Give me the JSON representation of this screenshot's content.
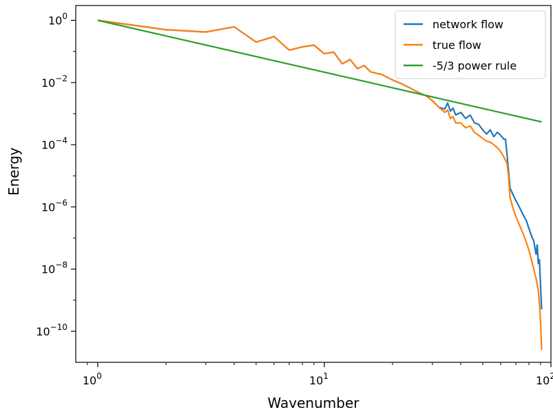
{
  "chart_data": {
    "type": "line",
    "xlabel": "Wavenumber",
    "ylabel": "Energy",
    "xscale": "log",
    "yscale": "log",
    "xlim": [
      0.8,
      100
    ],
    "ylim": [
      1e-11,
      3
    ],
    "grid": false,
    "legend_position": "top-right",
    "x_ticks": [
      {
        "value": 1,
        "base": "10",
        "exp": "0"
      },
      {
        "value": 10,
        "base": "10",
        "exp": "1"
      },
      {
        "value": 100,
        "base": "10",
        "exp": "2"
      }
    ],
    "y_ticks": [
      {
        "value": 1,
        "base": "10",
        "exp": "0"
      },
      {
        "value": 0.01,
        "base": "10",
        "exp": "−2"
      },
      {
        "value": 0.0001,
        "base": "10",
        "exp": "−4"
      },
      {
        "value": 1e-06,
        "base": "10",
        "exp": "−6"
      },
      {
        "value": 1e-08,
        "base": "10",
        "exp": "−8"
      },
      {
        "value": 1e-10,
        "base": "10",
        "exp": "−10"
      }
    ],
    "series": [
      {
        "name": "network flow",
        "color": "#1f77b4",
        "points": [
          [
            1,
            1.0
          ],
          [
            2,
            0.5
          ],
          [
            3,
            0.42
          ],
          [
            4,
            0.62
          ],
          [
            5,
            0.2
          ],
          [
            6,
            0.3
          ],
          [
            7,
            0.11
          ],
          [
            8,
            0.14
          ],
          [
            9,
            0.16
          ],
          [
            10,
            0.085
          ],
          [
            11,
            0.095
          ],
          [
            12,
            0.04
          ],
          [
            13,
            0.055
          ],
          [
            14,
            0.028
          ],
          [
            15,
            0.035
          ],
          [
            16,
            0.022
          ],
          [
            18,
            0.018
          ],
          [
            20,
            0.012
          ],
          [
            22,
            0.009
          ],
          [
            24,
            0.0065
          ],
          [
            26,
            0.0048
          ],
          [
            28,
            0.0038
          ],
          [
            30,
            0.0026
          ],
          [
            32,
            0.0016
          ],
          [
            34,
            0.0014
          ],
          [
            35,
            0.0022
          ],
          [
            36,
            0.0012
          ],
          [
            37,
            0.0015
          ],
          [
            38,
            0.0009
          ],
          [
            40,
            0.0011
          ],
          [
            42,
            0.0007
          ],
          [
            44,
            0.0009
          ],
          [
            46,
            0.0005
          ],
          [
            48,
            0.00045
          ],
          [
            50,
            0.0003
          ],
          [
            52,
            0.00022
          ],
          [
            54,
            0.0003
          ],
          [
            56,
            0.00018
          ],
          [
            58,
            0.00025
          ],
          [
            60,
            0.0002
          ],
          [
            62,
            0.00015
          ],
          [
            63,
            0.00015
          ],
          [
            64,
            5e-05
          ],
          [
            65,
            1.5e-05
          ],
          [
            66,
            4e-06
          ],
          [
            68,
            2.5e-06
          ],
          [
            70,
            1.6e-06
          ],
          [
            72,
            1.1e-06
          ],
          [
            75,
            6e-07
          ],
          [
            78,
            3.5e-07
          ],
          [
            80,
            2e-07
          ],
          [
            82,
            1.2e-07
          ],
          [
            84,
            8e-08
          ],
          [
            86,
            3e-08
          ],
          [
            87,
            6e-08
          ],
          [
            88,
            1.5e-08
          ],
          [
            89,
            2e-08
          ],
          [
            90,
            3e-09
          ],
          [
            91,
            5e-10
          ]
        ]
      },
      {
        "name": "true flow",
        "color": "#ff7f0e",
        "points": [
          [
            1,
            1.0
          ],
          [
            2,
            0.5
          ],
          [
            3,
            0.42
          ],
          [
            4,
            0.62
          ],
          [
            5,
            0.2
          ],
          [
            6,
            0.3
          ],
          [
            7,
            0.11
          ],
          [
            8,
            0.14
          ],
          [
            9,
            0.16
          ],
          [
            10,
            0.085
          ],
          [
            11,
            0.095
          ],
          [
            12,
            0.04
          ],
          [
            13,
            0.055
          ],
          [
            14,
            0.028
          ],
          [
            15,
            0.035
          ],
          [
            16,
            0.022
          ],
          [
            18,
            0.018
          ],
          [
            20,
            0.012
          ],
          [
            22,
            0.009
          ],
          [
            24,
            0.0065
          ],
          [
            26,
            0.0048
          ],
          [
            28,
            0.0038
          ],
          [
            30,
            0.0026
          ],
          [
            32,
            0.0016
          ],
          [
            34,
            0.0011
          ],
          [
            35,
            0.0013
          ],
          [
            36,
            0.0007
          ],
          [
            37,
            0.0008
          ],
          [
            38,
            0.0005
          ],
          [
            40,
            0.0005
          ],
          [
            42,
            0.00035
          ],
          [
            44,
            0.0004
          ],
          [
            46,
            0.00025
          ],
          [
            48,
            0.0002
          ],
          [
            50,
            0.00016
          ],
          [
            52,
            0.00013
          ],
          [
            54,
            0.00012
          ],
          [
            56,
            0.0001
          ],
          [
            58,
            8e-05
          ],
          [
            60,
            6e-05
          ],
          [
            62,
            4e-05
          ],
          [
            64,
            2.5e-05
          ],
          [
            65,
            1e-05
          ],
          [
            66,
            2e-06
          ],
          [
            68,
            9e-07
          ],
          [
            70,
            5e-07
          ],
          [
            72,
            3e-07
          ],
          [
            75,
            1.5e-07
          ],
          [
            78,
            7e-08
          ],
          [
            80,
            4e-08
          ],
          [
            82,
            2e-08
          ],
          [
            84,
            1e-08
          ],
          [
            86,
            5e-09
          ],
          [
            88,
            2e-09
          ],
          [
            89,
            8e-10
          ],
          [
            90,
            2e-10
          ],
          [
            91,
            2.5e-11
          ]
        ]
      },
      {
        "name": "-5/3 power rule",
        "color": "#2ca02c",
        "points": [
          [
            1,
            1.0
          ],
          [
            91,
            0.00054
          ]
        ]
      }
    ]
  }
}
